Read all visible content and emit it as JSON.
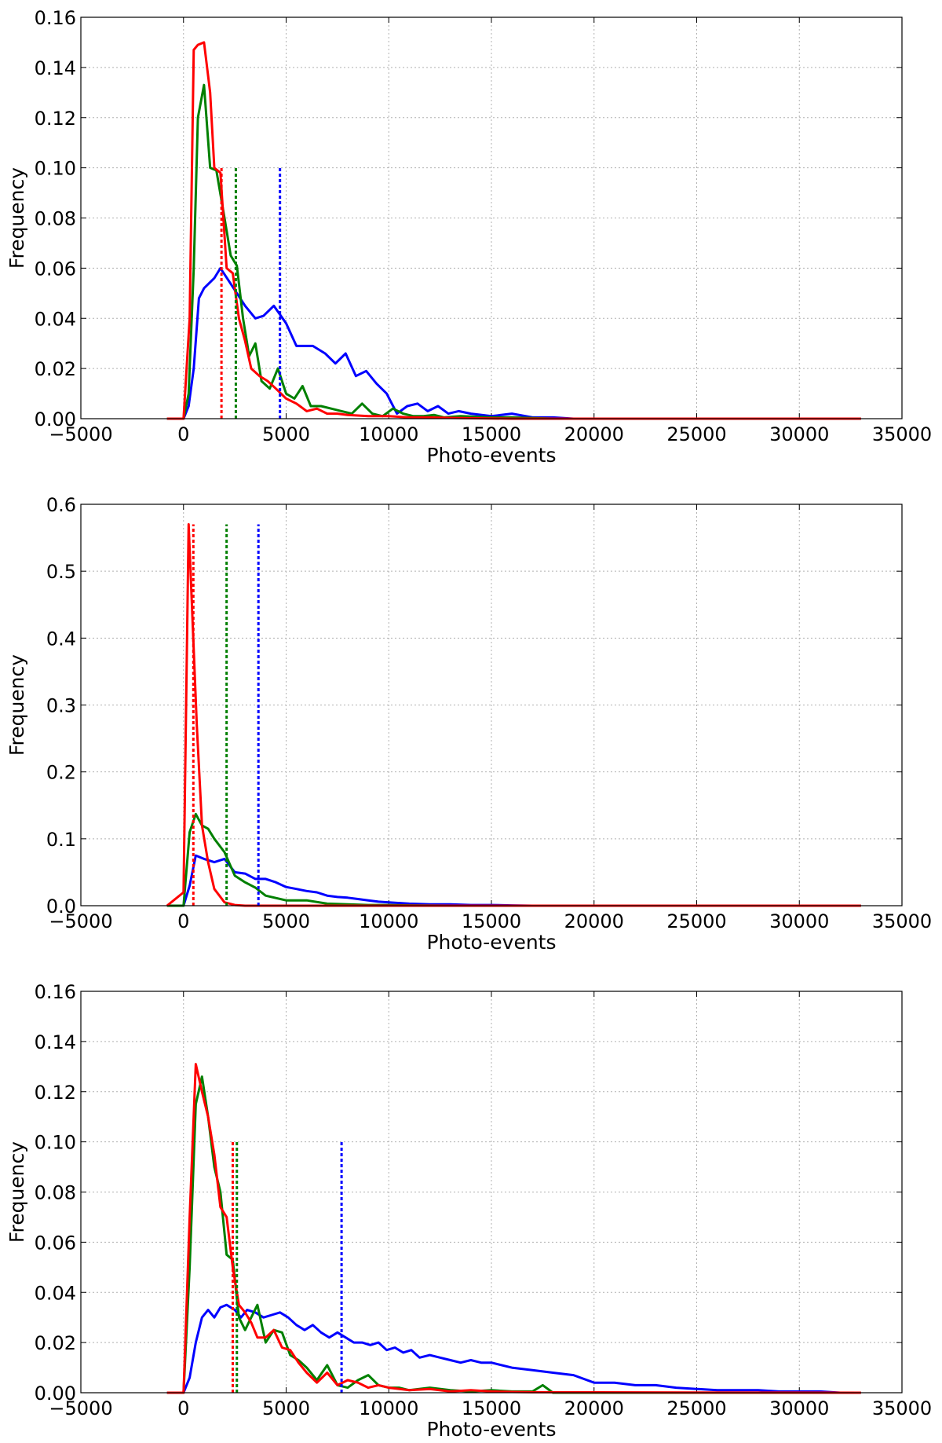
{
  "chart_data": [
    {
      "type": "line",
      "xlabel": "Photo-events",
      "ylabel": "Frequency",
      "xlim": [
        -5000,
        35000
      ],
      "ylim": [
        0.0,
        0.16
      ],
      "xticks": [
        "−5000",
        "0",
        "5000",
        "10000",
        "15000",
        "20000",
        "25000",
        "30000",
        "35000"
      ],
      "yticks": [
        "0.00",
        "0.02",
        "0.04",
        "0.06",
        "0.08",
        "0.10",
        "0.12",
        "0.14",
        "0.16"
      ],
      "grid": true,
      "series": [
        {
          "color": "#0000ff",
          "x": [
            -800,
            0,
            250,
            500,
            750,
            1000,
            1500,
            1800,
            2200,
            3000,
            3500,
            3900,
            4400,
            5000,
            5500,
            6300,
            6900,
            7400,
            7900,
            8400,
            8900,
            9400,
            9900,
            10400,
            10900,
            11400,
            11900,
            12400,
            12900,
            13400,
            14000,
            15000,
            16000,
            17000,
            18000,
            19000,
            33000
          ],
          "y": [
            0.0,
            0.0,
            0.005,
            0.02,
            0.048,
            0.052,
            0.056,
            0.06,
            0.055,
            0.045,
            0.04,
            0.041,
            0.045,
            0.038,
            0.029,
            0.029,
            0.026,
            0.022,
            0.026,
            0.017,
            0.019,
            0.014,
            0.01,
            0.002,
            0.005,
            0.006,
            0.003,
            0.005,
            0.002,
            0.003,
            0.002,
            0.001,
            0.002,
            0.0005,
            0.0005,
            0.0,
            0.0
          ]
        },
        {
          "color": "#008000",
          "x": [
            -800,
            0,
            250,
            500,
            700,
            1000,
            1300,
            1600,
            2000,
            2300,
            2600,
            2900,
            3200,
            3500,
            3800,
            4200,
            4600,
            5000,
            5400,
            5800,
            6200,
            6700,
            7200,
            7700,
            8200,
            8700,
            9200,
            9700,
            10200,
            10700,
            11200,
            11700,
            12200,
            12700,
            13500,
            15000,
            16000,
            18000,
            33000
          ],
          "y": [
            0.0,
            0.0,
            0.01,
            0.06,
            0.12,
            0.133,
            0.1,
            0.099,
            0.08,
            0.065,
            0.061,
            0.04,
            0.025,
            0.03,
            0.015,
            0.012,
            0.02,
            0.01,
            0.008,
            0.013,
            0.005,
            0.005,
            0.004,
            0.003,
            0.002,
            0.006,
            0.002,
            0.001,
            0.004,
            0.002,
            0.001,
            0.001,
            0.0015,
            0.0005,
            0.001,
            0.0005,
            0.0005,
            0.0,
            0.0
          ]
        },
        {
          "color": "#ff0000",
          "x": [
            -800,
            0,
            300,
            500,
            700,
            1000,
            1300,
            1500,
            1800,
            2100,
            2400,
            2700,
            3000,
            3300,
            3700,
            4100,
            4500,
            5000,
            5500,
            6000,
            6500,
            7000,
            7500,
            8000,
            9000,
            10000,
            11000,
            12000,
            13000,
            14000,
            16000,
            33000
          ],
          "y": [
            0.0,
            0.0,
            0.04,
            0.147,
            0.149,
            0.15,
            0.13,
            0.1,
            0.098,
            0.06,
            0.058,
            0.04,
            0.031,
            0.02,
            0.017,
            0.015,
            0.012,
            0.008,
            0.006,
            0.003,
            0.004,
            0.002,
            0.002,
            0.0015,
            0.001,
            0.001,
            0.0005,
            0.0005,
            0.0003,
            0.0002,
            0.0,
            0.0
          ]
        }
      ],
      "vlines": [
        {
          "color": "#ff0000",
          "x": 1850,
          "ymax": 0.1
        },
        {
          "color": "#008000",
          "x": 2550,
          "ymax": 0.1
        },
        {
          "color": "#0000ff",
          "x": 4700,
          "ymax": 0.1
        }
      ]
    },
    {
      "type": "line",
      "xlabel": "Photo-events",
      "ylabel": "Frequency",
      "xlim": [
        -5000,
        35000
      ],
      "ylim": [
        0.0,
        0.6
      ],
      "xticks": [
        "−5000",
        "0",
        "5000",
        "10000",
        "15000",
        "20000",
        "25000",
        "30000",
        "35000"
      ],
      "yticks": [
        "0.0",
        "0.1",
        "0.2",
        "0.3",
        "0.4",
        "0.5",
        "0.6"
      ],
      "grid": true,
      "series": [
        {
          "color": "#0000ff",
          "x": [
            -800,
            0,
            300,
            600,
            1000,
            1500,
            2000,
            2500,
            3000,
            3500,
            4000,
            4500,
            5000,
            5500,
            6000,
            6500,
            7000,
            7500,
            8000,
            8500,
            9000,
            9500,
            10000,
            11000,
            12000,
            13000,
            14000,
            15000,
            16000,
            17000,
            33000
          ],
          "y": [
            0.0,
            0.0,
            0.03,
            0.075,
            0.07,
            0.065,
            0.07,
            0.05,
            0.048,
            0.04,
            0.04,
            0.035,
            0.028,
            0.025,
            0.022,
            0.02,
            0.015,
            0.013,
            0.012,
            0.01,
            0.008,
            0.006,
            0.005,
            0.003,
            0.002,
            0.002,
            0.001,
            0.001,
            0.0005,
            0.0,
            0.0
          ]
        },
        {
          "color": "#008000",
          "x": [
            -800,
            0,
            300,
            600,
            900,
            1200,
            1500,
            2000,
            2500,
            3000,
            3500,
            4000,
            5000,
            6000,
            7000,
            8000,
            9000,
            10000,
            11000,
            13000,
            33000
          ],
          "y": [
            0.0,
            0.0,
            0.11,
            0.137,
            0.12,
            0.115,
            0.1,
            0.08,
            0.045,
            0.035,
            0.027,
            0.015,
            0.008,
            0.008,
            0.003,
            0.002,
            0.001,
            0.001,
            0.0005,
            0.0,
            0.0
          ]
        },
        {
          "color": "#ff0000",
          "x": [
            -800,
            0,
            250,
            450,
            650,
            900,
            1200,
            1500,
            2000,
            2500,
            3000,
            33000
          ],
          "y": [
            0.0,
            0.02,
            0.57,
            0.42,
            0.27,
            0.12,
            0.065,
            0.025,
            0.005,
            0.001,
            0.0,
            0.0
          ]
        }
      ],
      "vlines": [
        {
          "color": "#ff0000",
          "x": 480,
          "ymax": 0.57
        },
        {
          "color": "#008000",
          "x": 2100,
          "ymax": 0.57
        },
        {
          "color": "#0000ff",
          "x": 3650,
          "ymax": 0.57
        }
      ]
    },
    {
      "type": "line",
      "xlabel": "Photo-events",
      "ylabel": "Frequency",
      "xlim": [
        -5000,
        35000
      ],
      "ylim": [
        0.0,
        0.16
      ],
      "xticks": [
        "−5000",
        "0",
        "5000",
        "10000",
        "15000",
        "20000",
        "25000",
        "30000",
        "35000"
      ],
      "yticks": [
        "0.00",
        "0.02",
        "0.04",
        "0.06",
        "0.08",
        "0.10",
        "0.12",
        "0.14",
        "0.16"
      ],
      "grid": true,
      "series": [
        {
          "color": "#0000ff",
          "x": [
            -800,
            0,
            300,
            600,
            900,
            1200,
            1500,
            1800,
            2100,
            2500,
            2800,
            3100,
            3500,
            3900,
            4300,
            4700,
            5100,
            5500,
            5900,
            6300,
            6700,
            7100,
            7500,
            7900,
            8300,
            8700,
            9100,
            9500,
            9900,
            10300,
            10700,
            11100,
            11500,
            12000,
            12500,
            13000,
            13500,
            14000,
            14500,
            15000,
            16000,
            17000,
            18000,
            19000,
            20000,
            21000,
            22000,
            23000,
            24000,
            25000,
            26000,
            27000,
            28000,
            29000,
            30000,
            31000,
            32000,
            33000
          ],
          "y": [
            0.0,
            0.0,
            0.006,
            0.02,
            0.03,
            0.033,
            0.03,
            0.034,
            0.035,
            0.033,
            0.03,
            0.033,
            0.032,
            0.03,
            0.031,
            0.032,
            0.03,
            0.027,
            0.025,
            0.027,
            0.024,
            0.022,
            0.024,
            0.022,
            0.02,
            0.02,
            0.019,
            0.02,
            0.017,
            0.018,
            0.016,
            0.017,
            0.014,
            0.015,
            0.014,
            0.013,
            0.012,
            0.013,
            0.012,
            0.012,
            0.01,
            0.009,
            0.008,
            0.007,
            0.004,
            0.004,
            0.003,
            0.003,
            0.002,
            0.0015,
            0.001,
            0.001,
            0.001,
            0.0005,
            0.0005,
            0.0005,
            0.0,
            0.0
          ]
        },
        {
          "color": "#008000",
          "x": [
            -800,
            0,
            300,
            600,
            900,
            1200,
            1500,
            1800,
            2100,
            2400,
            2700,
            3000,
            3300,
            3600,
            4000,
            4400,
            4800,
            5200,
            5600,
            6000,
            6500,
            7000,
            7500,
            8000,
            8500,
            9000,
            9500,
            10000,
            10500,
            11000,
            12000,
            13000,
            14000,
            15000,
            16000,
            17000,
            17500,
            18000,
            20000,
            33000
          ],
          "y": [
            0.0,
            0.0,
            0.05,
            0.115,
            0.126,
            0.11,
            0.09,
            0.08,
            0.055,
            0.053,
            0.03,
            0.025,
            0.03,
            0.035,
            0.02,
            0.025,
            0.024,
            0.015,
            0.013,
            0.01,
            0.005,
            0.011,
            0.003,
            0.002,
            0.005,
            0.007,
            0.003,
            0.002,
            0.002,
            0.001,
            0.002,
            0.001,
            0.0005,
            0.001,
            0.0005,
            0.0005,
            0.003,
            0.0,
            0.0,
            0.0
          ]
        },
        {
          "color": "#ff0000",
          "x": [
            -800,
            0,
            300,
            600,
            900,
            1200,
            1500,
            1800,
            2100,
            2400,
            2700,
            3000,
            3300,
            3600,
            4000,
            4400,
            4800,
            5200,
            5600,
            6000,
            6500,
            7000,
            7500,
            8000,
            8500,
            9000,
            9500,
            10000,
            11000,
            12000,
            13000,
            14000,
            15000,
            16000,
            17000,
            33000
          ],
          "y": [
            0.0,
            0.0,
            0.07,
            0.131,
            0.12,
            0.11,
            0.095,
            0.074,
            0.07,
            0.05,
            0.035,
            0.032,
            0.028,
            0.022,
            0.022,
            0.025,
            0.018,
            0.017,
            0.012,
            0.008,
            0.004,
            0.008,
            0.003,
            0.005,
            0.004,
            0.002,
            0.003,
            0.002,
            0.001,
            0.0015,
            0.0005,
            0.001,
            0.0005,
            0.0003,
            0.0002,
            0.0
          ]
        }
      ],
      "vlines": [
        {
          "color": "#ff0000",
          "x": 2400,
          "ymax": 0.1
        },
        {
          "color": "#008000",
          "x": 2600,
          "ymax": 0.1
        },
        {
          "color": "#0000ff",
          "x": 7700,
          "ymax": 0.1
        }
      ]
    }
  ]
}
